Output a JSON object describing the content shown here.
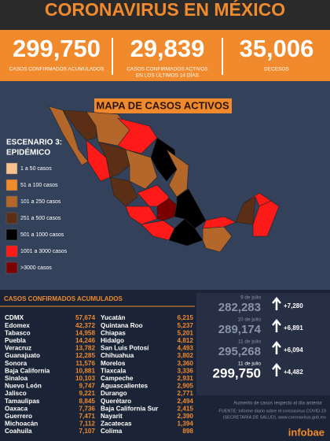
{
  "header": {
    "title": "CORONAVIRUS EN MÉXICO"
  },
  "stats": [
    {
      "value": "299,750",
      "label": "CASOS CONFIRMADOS ACUMULADOS"
    },
    {
      "value": "29,839",
      "label": "CASOS CONFIRMADOS ACTIVOS",
      "label2": "EN LOS ÚLTIMOS 14 DÍAS"
    },
    {
      "value": "35,006",
      "label": "DECESOS"
    }
  ],
  "map": {
    "title": "MAPA DE CASOS ACTIVOS",
    "legend_title": "ESCENARIO 3:",
    "legend_subtitle": "EPIDÉMICO",
    "legend": [
      {
        "label": "1 a 50 casos",
        "color": "#f8c28e"
      },
      {
        "label": "51 a 100 casos",
        "color": "#f08a2c"
      },
      {
        "label": "101 a 250 casos",
        "color": "#b3672b"
      },
      {
        "label": "251 a 500 casos",
        "color": "#5a2f16"
      },
      {
        "label": "501 a 1000 casos",
        "color": "#000000"
      },
      {
        "label": "1001 a 3000 casos",
        "color": "#ff1a1a"
      },
      {
        "label": ">3000 casos",
        "color": "#7a0000"
      }
    ]
  },
  "table": {
    "title": "CASOS CONFIRMADOS ACUMULADOS",
    "left": [
      [
        "CDMX",
        "57,674"
      ],
      [
        "Edomex",
        "42,372"
      ],
      [
        "Tabasco",
        "14,958"
      ],
      [
        "Puebla",
        "14,246"
      ],
      [
        "Veracruz",
        "13,782"
      ],
      [
        "Guanajuato",
        "12,285"
      ],
      [
        "Sonora",
        "11,576"
      ],
      [
        "Baja California",
        "10,881"
      ],
      [
        "Sinaloa",
        "10,103"
      ],
      [
        "Nuevo León",
        "9,747"
      ],
      [
        "Jalisco",
        "9,221"
      ],
      [
        "Tamaulipas",
        "8,845"
      ],
      [
        "Oaxaca",
        "7,736"
      ],
      [
        "Guerrero",
        "7,471"
      ],
      [
        "Michoacán",
        "7,112"
      ],
      [
        "Coahuila",
        "7,107"
      ]
    ],
    "right": [
      [
        "Yucatán",
        "6,215"
      ],
      [
        "Quintana Roo",
        "5,237"
      ],
      [
        "Chiapas",
        "5,201"
      ],
      [
        "Hidalgo",
        "4,812"
      ],
      [
        "San Luis Potosí",
        "4,493"
      ],
      [
        "Chihuahua",
        "3,802"
      ],
      [
        "Morelos",
        "3,360"
      ],
      [
        "Tlaxcala",
        "3,336"
      ],
      [
        "Campeche",
        "2,931"
      ],
      [
        "Aguascalientes",
        "2,905"
      ],
      [
        "Durango",
        "2,771"
      ],
      [
        "Querétaro",
        "2,494"
      ],
      [
        "Baja California Sur",
        "2,415"
      ],
      [
        "Nayarit",
        "2,390"
      ],
      [
        "Zacatecas",
        "1,394"
      ],
      [
        "Colima",
        "898"
      ]
    ]
  },
  "timeline": [
    {
      "date": "9 de julio",
      "total": "282,283",
      "increase": "+7,280"
    },
    {
      "date": "10 de julio",
      "total": "289,174",
      "increase": "+6,891"
    },
    {
      "date": "11 de julio",
      "total": "295,268",
      "increase": "+6,094"
    },
    {
      "date": "11 de julio",
      "total": "299,750",
      "increase": "+4,482"
    }
  ],
  "timeline_note": "Aumento de casos respecto al día anterior",
  "footer": {
    "source": "FUENTE: Informe diario sobre el coronavirus COVID-19",
    "source2": "(SECRETARÍA DE SALUD), www.coronavirus.gob.mx",
    "brand": "infobae"
  }
}
